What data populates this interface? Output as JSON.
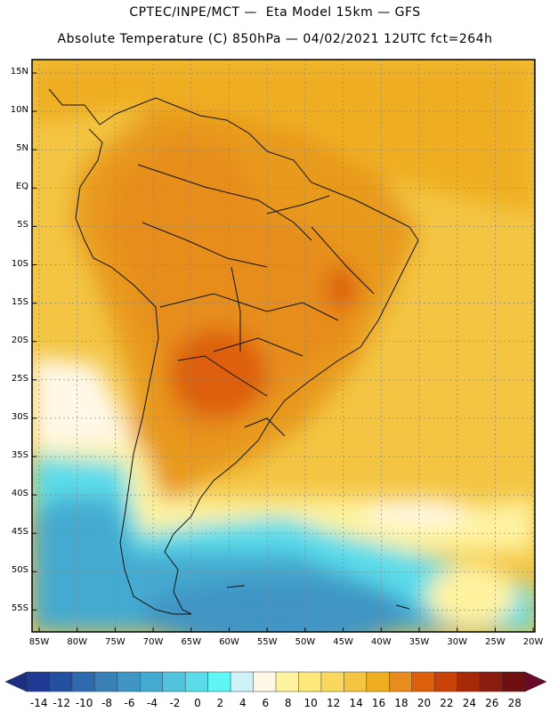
{
  "title_line1": "CPTEC/INPE/MCT —  Eta Model 15km — GFS",
  "title_line2": "Absolute Temperature (C) 850hPa — 04/02/2021 12UTC fct=264h",
  "lat_labels": [
    "15N",
    "10N",
    "5N",
    "EQ",
    "5S",
    "10S",
    "15S",
    "20S",
    "25S",
    "30S",
    "35S",
    "40S",
    "45S",
    "50S",
    "55S"
  ],
  "lon_labels": [
    "85W",
    "80W",
    "75W",
    "70W",
    "65W",
    "60W",
    "55W",
    "50W",
    "45W",
    "40W",
    "35W",
    "30W",
    "25W",
    "20W"
  ],
  "colorbar": {
    "labels": [
      "-14",
      "-12",
      "-10",
      "-8",
      "-6",
      "-4",
      "-2",
      "0",
      "2",
      "4",
      "6",
      "8",
      "10",
      "12",
      "14",
      "16",
      "18",
      "20",
      "22",
      "24",
      "26",
      "28"
    ],
    "colors": [
      "#1f3a93",
      "#24509f",
      "#2e6aad",
      "#3a80b8",
      "#3f95c4",
      "#45aad0",
      "#52c3dd",
      "#5adcea",
      "#5ff6f6",
      "#cdf3f8",
      "#fff8e6",
      "#fff3a0",
      "#fde87b",
      "#f9d85f",
      "#f3c543",
      "#efae20",
      "#e68d1d",
      "#dd5f0c",
      "#c94208",
      "#a82906",
      "#8a1d0f",
      "#6e1010"
    ]
  }
}
